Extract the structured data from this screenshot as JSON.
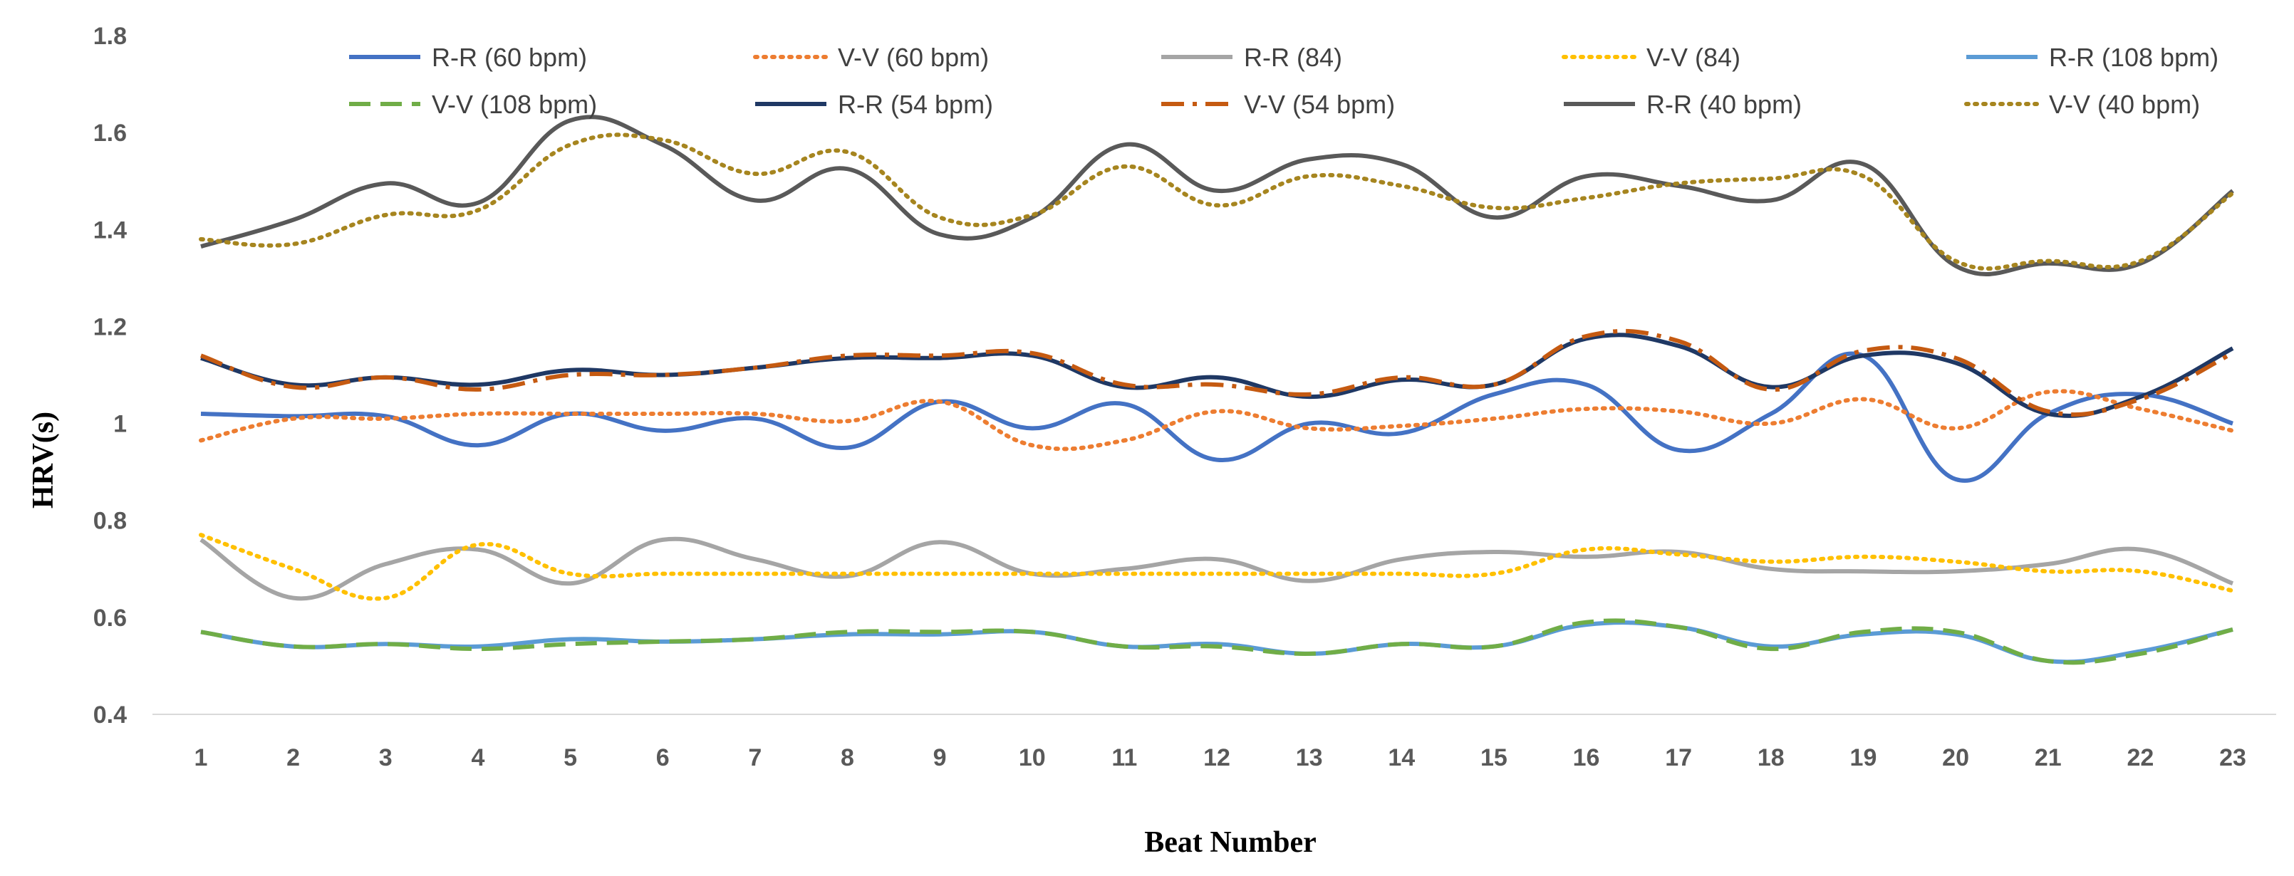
{
  "chart_data": {
    "type": "line",
    "title": "",
    "xlabel": "Beat Number",
    "ylabel": "HRV(s)",
    "ylim": [
      0.4,
      1.8
    ],
    "yticks": [
      "0.4",
      "0.6",
      "0.8",
      "1",
      "1.2",
      "1.4",
      "1.6",
      "1.8"
    ],
    "grid": false,
    "legend_position": "top",
    "categories": [
      "1",
      "2",
      "3",
      "4",
      "5",
      "6",
      "7",
      "8",
      "9",
      "10",
      "11",
      "12",
      "13",
      "14",
      "15",
      "16",
      "17",
      "18",
      "19",
      "20",
      "21",
      "22",
      "23"
    ],
    "series": [
      {
        "name": "R-R (60 bpm)",
        "color": "#4472C4",
        "dash": "solid",
        "values": [
          1.02,
          1.015,
          1.015,
          0.955,
          1.02,
          0.985,
          1.01,
          0.95,
          1.045,
          0.99,
          1.04,
          0.925,
          1.0,
          0.98,
          1.06,
          1.08,
          0.945,
          1.02,
          1.14,
          0.885,
          1.02,
          1.06,
          1.0
        ]
      },
      {
        "name": "V-V (60 bpm)",
        "color": "#ED7D31",
        "dash": "dot",
        "values": [
          0.965,
          1.01,
          1.01,
          1.02,
          1.02,
          1.02,
          1.02,
          1.005,
          1.045,
          0.955,
          0.965,
          1.025,
          0.99,
          0.995,
          1.01,
          1.03,
          1.025,
          1.0,
          1.05,
          0.99,
          1.065,
          1.03,
          0.985
        ]
      },
      {
        "name": "R-R (84)",
        "color": "#A5A5A5",
        "dash": "solid",
        "values": [
          0.76,
          0.64,
          0.71,
          0.74,
          0.67,
          0.76,
          0.72,
          0.685,
          0.755,
          0.69,
          0.7,
          0.72,
          0.675,
          0.72,
          0.735,
          0.725,
          0.735,
          0.7,
          0.695,
          0.695,
          0.71,
          0.74,
          0.67
        ]
      },
      {
        "name": "V-V (84)",
        "color": "#FFC000",
        "dash": "dot",
        "values": [
          0.77,
          0.7,
          0.64,
          0.75,
          0.69,
          0.69,
          0.69,
          0.69,
          0.69,
          0.69,
          0.69,
          0.69,
          0.69,
          0.69,
          0.69,
          0.74,
          0.73,
          0.715,
          0.725,
          0.715,
          0.695,
          0.695,
          0.655
        ]
      },
      {
        "name": "R-R (108 bpm)",
        "color": "#5B9BD5",
        "dash": "solid",
        "values": [
          0.57,
          0.54,
          0.545,
          0.54,
          0.555,
          0.55,
          0.555,
          0.565,
          0.565,
          0.57,
          0.54,
          0.545,
          0.525,
          0.545,
          0.54,
          0.585,
          0.58,
          0.54,
          0.565,
          0.565,
          0.51,
          0.53,
          0.575
        ]
      },
      {
        "name": "V-V (108 bpm)",
        "color": "#70AD47",
        "dash": "dash",
        "values": [
          0.57,
          0.54,
          0.545,
          0.535,
          0.545,
          0.55,
          0.555,
          0.57,
          0.57,
          0.57,
          0.54,
          0.54,
          0.525,
          0.545,
          0.54,
          0.59,
          0.58,
          0.535,
          0.57,
          0.57,
          0.51,
          0.525,
          0.575
        ]
      },
      {
        "name": "R-R (54 bpm)",
        "color": "#1F3864",
        "dash": "solid",
        "values": [
          1.135,
          1.08,
          1.095,
          1.08,
          1.11,
          1.1,
          1.115,
          1.135,
          1.135,
          1.14,
          1.075,
          1.095,
          1.055,
          1.09,
          1.08,
          1.175,
          1.16,
          1.075,
          1.14,
          1.125,
          1.02,
          1.055,
          1.155
        ]
      },
      {
        "name": "V-V (54 bpm)",
        "color": "#C55A11",
        "dash": "dashdot",
        "values": [
          1.14,
          1.075,
          1.095,
          1.07,
          1.1,
          1.1,
          1.115,
          1.14,
          1.14,
          1.145,
          1.08,
          1.08,
          1.06,
          1.095,
          1.08,
          1.18,
          1.17,
          1.07,
          1.15,
          1.135,
          1.025,
          1.05,
          1.145
        ]
      },
      {
        "name": "R-R (40 bpm)",
        "color": "#595959",
        "dash": "solid",
        "values": [
          1.365,
          1.42,
          1.495,
          1.455,
          1.625,
          1.575,
          1.46,
          1.525,
          1.39,
          1.425,
          1.575,
          1.48,
          1.545,
          1.535,
          1.425,
          1.51,
          1.49,
          1.46,
          1.535,
          1.325,
          1.33,
          1.33,
          1.48
        ]
      },
      {
        "name": "V-V (40 bpm)",
        "color": "#A6851F",
        "dash": "dot",
        "values": [
          1.38,
          1.37,
          1.43,
          1.44,
          1.575,
          1.585,
          1.515,
          1.56,
          1.425,
          1.43,
          1.53,
          1.45,
          1.51,
          1.49,
          1.445,
          1.465,
          1.495,
          1.505,
          1.51,
          1.335,
          1.335,
          1.335,
          1.475
        ]
      }
    ]
  }
}
